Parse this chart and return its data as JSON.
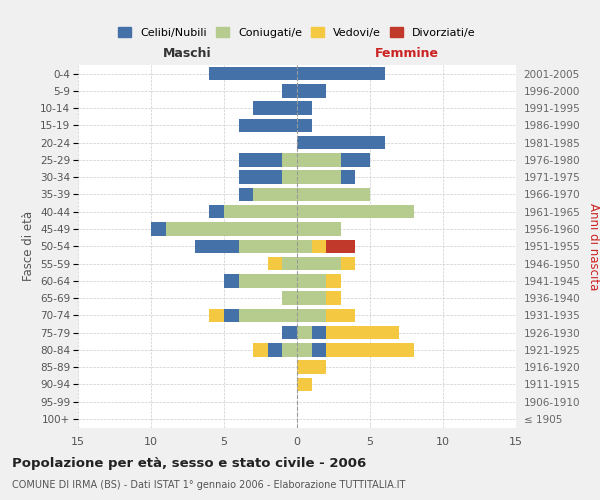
{
  "age_groups": [
    "100+",
    "95-99",
    "90-94",
    "85-89",
    "80-84",
    "75-79",
    "70-74",
    "65-69",
    "60-64",
    "55-59",
    "50-54",
    "45-49",
    "40-44",
    "35-39",
    "30-34",
    "25-29",
    "20-24",
    "15-19",
    "10-14",
    "5-9",
    "0-4"
  ],
  "birth_years": [
    "≤ 1905",
    "1906-1910",
    "1911-1915",
    "1916-1920",
    "1921-1925",
    "1926-1930",
    "1931-1935",
    "1936-1940",
    "1941-1945",
    "1946-1950",
    "1951-1955",
    "1956-1960",
    "1961-1965",
    "1966-1970",
    "1971-1975",
    "1976-1980",
    "1981-1985",
    "1986-1990",
    "1991-1995",
    "1996-2000",
    "2001-2005"
  ],
  "maschi": {
    "celibi": [
      0,
      0,
      0,
      0,
      1,
      1,
      1,
      0,
      1,
      0,
      3,
      1,
      1,
      1,
      3,
      3,
      0,
      4,
      3,
      1,
      6
    ],
    "coniugati": [
      0,
      0,
      0,
      0,
      1,
      0,
      4,
      1,
      4,
      1,
      4,
      9,
      5,
      3,
      1,
      1,
      0,
      0,
      0,
      0,
      0
    ],
    "vedovi": [
      0,
      0,
      0,
      0,
      1,
      0,
      1,
      0,
      0,
      1,
      0,
      0,
      0,
      0,
      0,
      0,
      0,
      0,
      0,
      0,
      0
    ],
    "divorziati": [
      0,
      0,
      0,
      0,
      0,
      0,
      0,
      0,
      0,
      0,
      0,
      0,
      0,
      0,
      0,
      0,
      0,
      0,
      0,
      0,
      0
    ]
  },
  "femmine": {
    "nubili": [
      0,
      0,
      0,
      0,
      1,
      1,
      0,
      0,
      0,
      0,
      0,
      0,
      0,
      0,
      1,
      2,
      6,
      1,
      1,
      2,
      6
    ],
    "coniugate": [
      0,
      0,
      0,
      0,
      1,
      1,
      2,
      2,
      2,
      3,
      1,
      3,
      8,
      5,
      3,
      3,
      0,
      0,
      0,
      0,
      0
    ],
    "vedove": [
      0,
      0,
      1,
      2,
      6,
      5,
      2,
      1,
      1,
      1,
      1,
      0,
      0,
      0,
      0,
      0,
      0,
      0,
      0,
      0,
      0
    ],
    "divorziate": [
      0,
      0,
      0,
      0,
      0,
      0,
      0,
      0,
      0,
      0,
      2,
      0,
      0,
      0,
      0,
      0,
      0,
      0,
      0,
      0,
      0
    ]
  },
  "colors": {
    "celibi_nubili": "#4472a8",
    "coniugati": "#b5cc8e",
    "vedovi": "#f5c842",
    "divorziati": "#c0392b"
  },
  "title": "Popolazione per età, sesso e stato civile - 2006",
  "subtitle": "COMUNE DI IRMA (BS) - Dati ISTAT 1° gennaio 2006 - Elaborazione TUTTITALIA.IT",
  "xlabel_left": "Maschi",
  "xlabel_right": "Femmine",
  "ylabel_left": "Fasce di età",
  "ylabel_right": "Anni di nascita",
  "xlim": 15,
  "bg_color": "#f0f0f0",
  "plot_bg": "#ffffff",
  "grid_color": "#cccccc"
}
